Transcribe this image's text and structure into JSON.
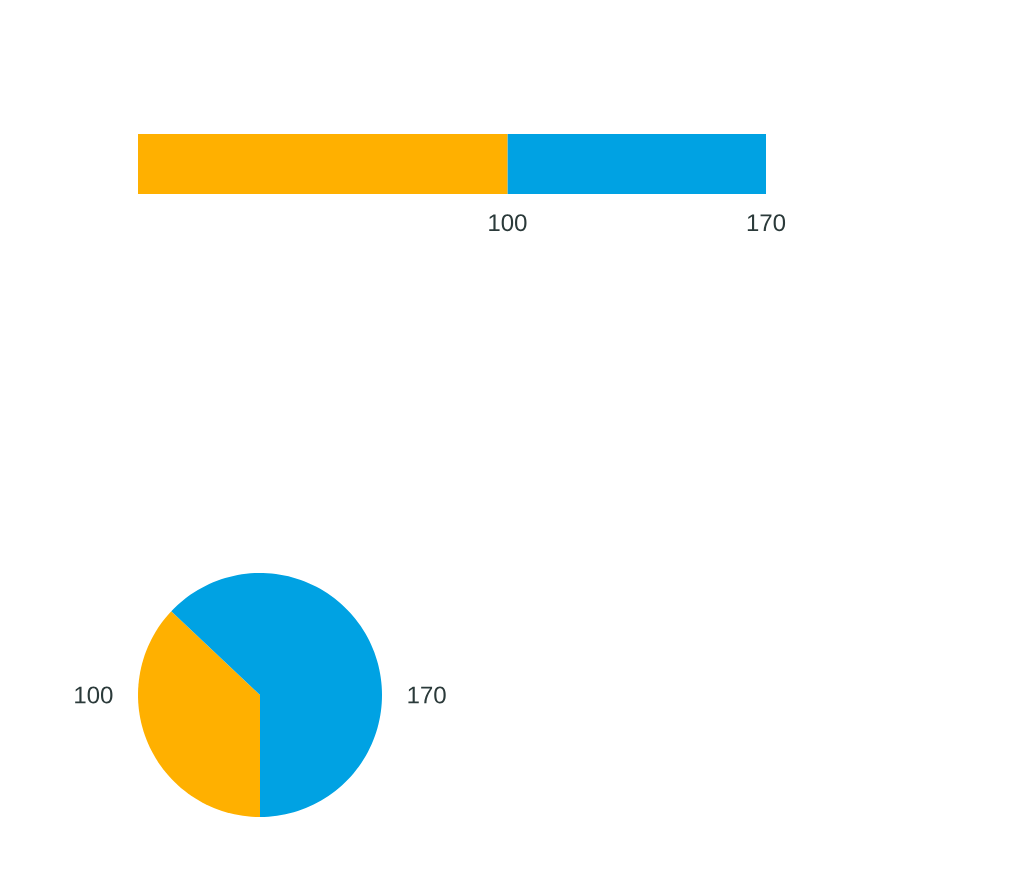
{
  "chart_data": [
    {
      "type": "bar",
      "orientation": "horizontal",
      "stacked": true,
      "categories": [
        null
      ],
      "xlim": [
        0,
        170
      ],
      "xticks": [
        100,
        170
      ],
      "series": [
        {
          "color": "#ffb000",
          "values": [
            100
          ]
        },
        {
          "color": "#00a2e3",
          "values": [
            70
          ]
        }
      ]
    },
    {
      "type": "pie",
      "categories": [
        null,
        null
      ],
      "values": [
        100,
        170
      ],
      "colors": [
        "#ffb000",
        "#00a2e3"
      ],
      "data_labels": true
    }
  ]
}
